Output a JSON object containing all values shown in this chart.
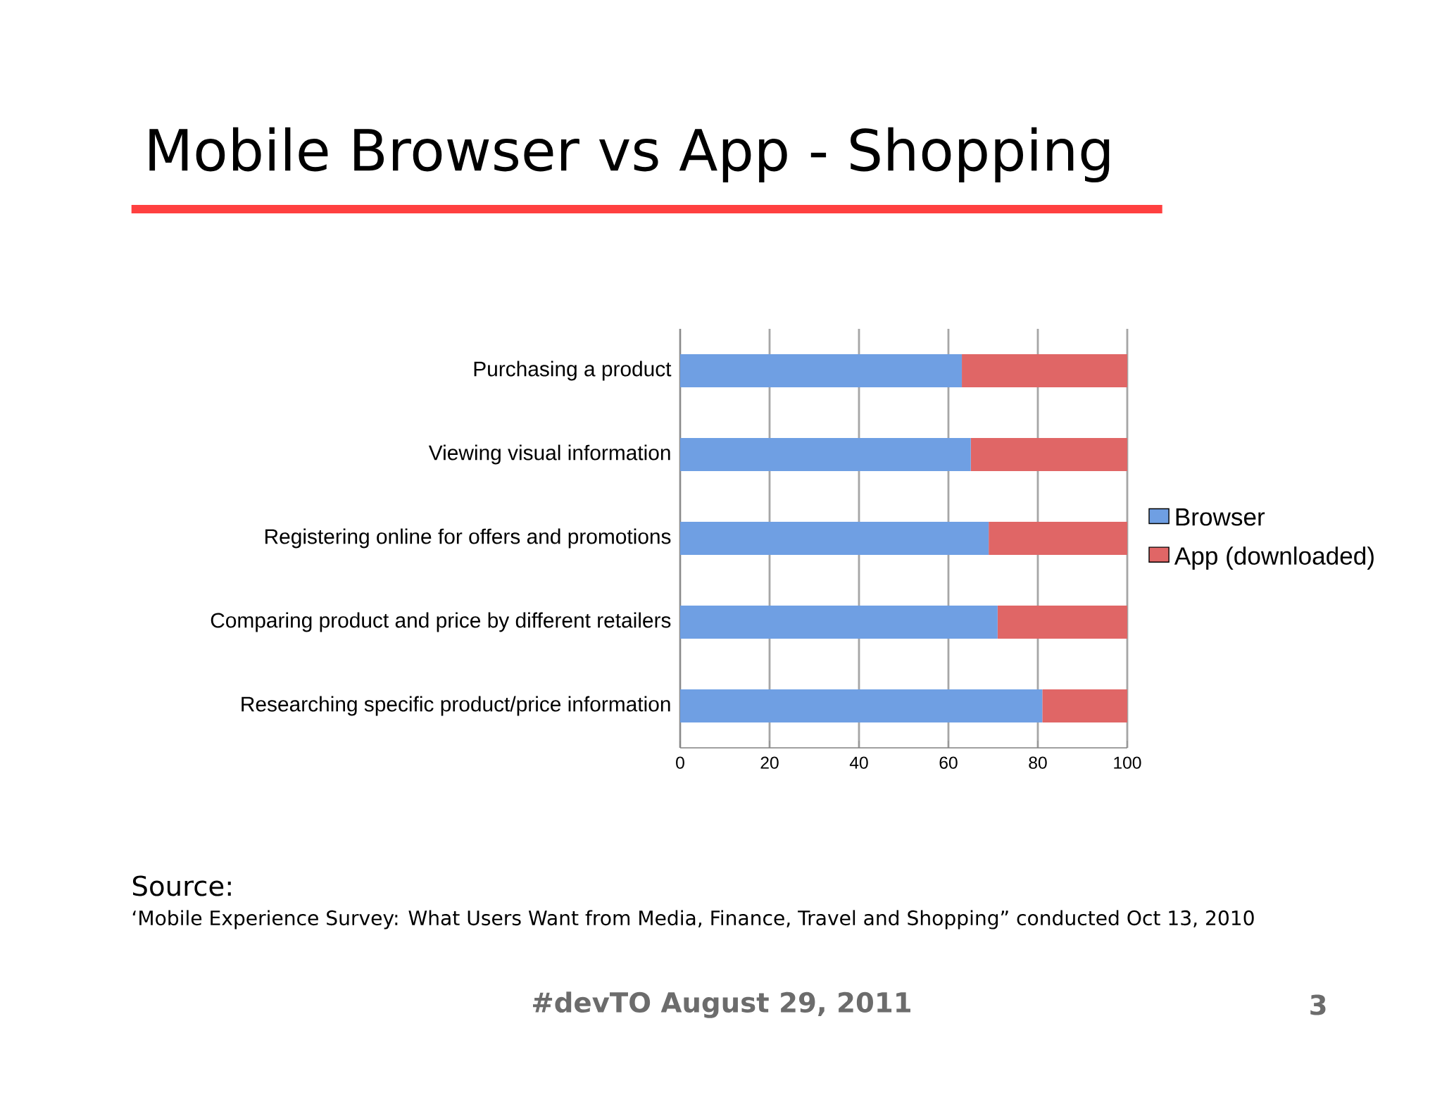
{
  "chart_data": {
    "type": "bar",
    "orientation": "horizontal",
    "stacked": true,
    "title": "Mobile Browser vs App - Shopping",
    "categories": [
      "Purchasing a product",
      "Viewing visual information",
      "Registering online for offers and promotions",
      "Comparing product and price by different retailers",
      "Researching specific product/price information"
    ],
    "series": [
      {
        "name": "Browser",
        "color": "#6f9fe3",
        "values": [
          63,
          65,
          69,
          71,
          81
        ]
      },
      {
        "name": "App (downloaded)",
        "color": "#e06666",
        "values": [
          37,
          35,
          31,
          29,
          19
        ]
      }
    ],
    "xlim": [
      0,
      100
    ],
    "xticks": [
      0,
      20,
      40,
      60,
      80,
      100
    ],
    "grid": "x",
    "legend": "right",
    "annotations": [
      "Source:",
      "‘Mobile Experience Survey: What Users Want from Media, Finance, Travel and Shopping” conducted Oct 13, 2010",
      "#devTO August 29, 2011",
      "3"
    ]
  }
}
